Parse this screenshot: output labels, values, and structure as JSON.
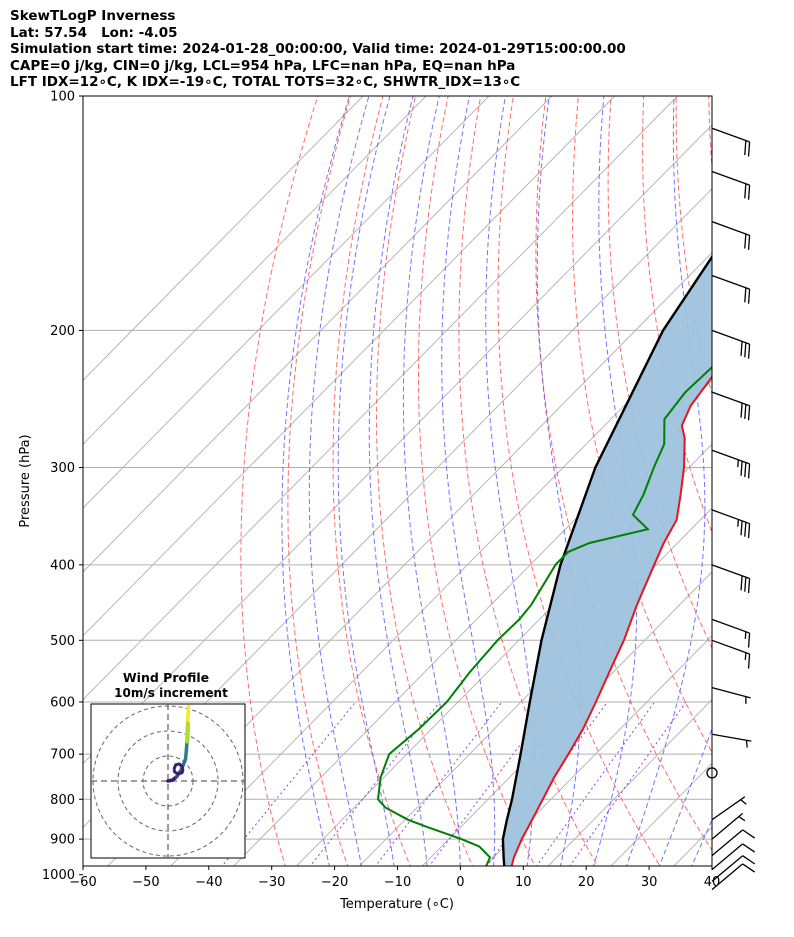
{
  "header": {
    "line1": "SkewTLogP Inverness",
    "line2": "Lat: 57.54   Lon: -4.05",
    "line3": "Simulation start time: 2024-01-28_00:00:00, Valid time: 2024-01-29T15:00:00.00",
    "line4": "CAPE=0 j/kg, CIN=0 j/kg, LCL=954 hPa, LFC=nan hPa, EQ=nan hPa",
    "line5": "LFT IDX=12∘C, K IDX=-19∘C, TOTAL TOTS=32∘C, SHWTR_IDX=13∘C"
  },
  "colors": {
    "temperature": "#e8141b",
    "dewpoint": "#008000",
    "parcel": "#000000",
    "cape_fill": "#9ec2de",
    "dry_adiabat": "#ff5a5a",
    "moist_adiabat": "#5a5aff",
    "mixing_ratio": "#8a2be2",
    "isotherm": "#b0b0b0"
  },
  "chart_data": [
    {
      "type": "line",
      "subtype": "skew-t log-p",
      "xlabel": "Temperature (∘C)",
      "ylabel": "Pressure (hPa)",
      "xlim": [
        -60,
        40
      ],
      "ylim": [
        1050,
        100
      ],
      "y_scale": "log",
      "x_ticks": [
        "−60",
        "−50",
        "−40",
        "−30",
        "−20",
        "−10",
        "0",
        "10",
        "20",
        "30",
        "40"
      ],
      "y_ticks": [
        "100",
        "200",
        "300",
        "400",
        "500",
        "600",
        "700",
        "800",
        "900",
        "1000"
      ],
      "grid": true,
      "series": [
        {
          "role": "temperature",
          "points": [
            [
              1010,
              6
            ],
            [
              1000,
              5.2
            ],
            [
              950,
              3.2
            ],
            [
              900,
              1.6
            ],
            [
              850,
              0.2
            ],
            [
              800,
              -1.3
            ],
            [
              750,
              -2.9
            ],
            [
              700,
              -4.3
            ],
            [
              650,
              -5.9
            ],
            [
              600,
              -8.1
            ],
            [
              550,
              -10.6
            ],
            [
              500,
              -13.3
            ],
            [
              450,
              -16.8
            ],
            [
              400,
              -20.3
            ],
            [
              375,
              -22.2
            ],
            [
              350,
              -23.8
            ],
            [
              325,
              -27.1
            ],
            [
              300,
              -30.8
            ],
            [
              275,
              -35.3
            ],
            [
              265,
              -37.7
            ],
            [
              250,
              -39.4
            ],
            [
              225,
              -40.8
            ],
            [
              210,
              -41.3
            ],
            [
              200,
              -42.2
            ],
            [
              175,
              -43.3
            ],
            [
              150,
              -45.0
            ],
            [
              125,
              -47.2
            ],
            [
              110,
              -48.4
            ],
            [
              100,
              -49.1
            ]
          ]
        },
        {
          "role": "dewpoint",
          "points": [
            [
              1010,
              0.8
            ],
            [
              990,
              0.6
            ],
            [
              950,
              -0.6
            ],
            [
              920,
              -4.0
            ],
            [
              900,
              -8.0
            ],
            [
              870,
              -15.0
            ],
            [
              850,
              -19.5
            ],
            [
              820,
              -25.0
            ],
            [
              800,
              -27.5
            ],
            [
              750,
              -30.5
            ],
            [
              700,
              -32.8
            ],
            [
              650,
              -32.0
            ],
            [
              600,
              -31.8
            ],
            [
              550,
              -32.8
            ],
            [
              500,
              -33.4
            ],
            [
              470,
              -33.2
            ],
            [
              450,
              -33.6
            ],
            [
              400,
              -36.0
            ],
            [
              385,
              -36.0
            ],
            [
              375,
              -34.0
            ],
            [
              360,
              -26.9
            ],
            [
              345,
              -31.5
            ],
            [
              325,
              -33.0
            ],
            [
              300,
              -35.6
            ],
            [
              280,
              -37.6
            ],
            [
              260,
              -41.5
            ],
            [
              240,
              -42.4
            ],
            [
              220,
              -42.0
            ],
            [
              200,
              -43.4
            ],
            [
              185,
              -46.6
            ],
            [
              170,
              -50.7
            ],
            [
              150,
              -51.9
            ],
            [
              130,
              -52.4
            ],
            [
              110,
              -52.9
            ],
            [
              100,
              -52.8
            ]
          ]
        },
        {
          "role": "parcel",
          "points": [
            [
              1010,
              5.2
            ],
            [
              1000,
              4.5
            ],
            [
              954,
              1.8
            ],
            [
              900,
              -1.4
            ],
            [
              850,
              -3.8
            ],
            [
              800,
              -6.2
            ],
            [
              700,
              -11.9
            ],
            [
              600,
              -18.6
            ],
            [
              500,
              -26.4
            ],
            [
              400,
              -35.2
            ],
            [
              300,
              -44.9
            ],
            [
              200,
              -55.6
            ],
            [
              100,
              -67.5
            ]
          ]
        }
      ],
      "hodograph": {
        "title": "Wind Profile",
        "subtitle": "10m/s increment",
        "points": [
          [
            0,
            0
          ],
          [
            1,
            0.2
          ],
          [
            2,
            1
          ],
          [
            3,
            2.5
          ],
          [
            4,
            5
          ],
          [
            4.2,
            7
          ],
          [
            4.4,
            9.8
          ],
          [
            4.5,
            12
          ],
          [
            4.6,
            13
          ],
          [
            4.5,
            10
          ],
          [
            4.3,
            9
          ],
          [
            4.5,
            14
          ],
          [
            4.7,
            17
          ]
        ],
        "loop": [
          [
            -4.5,
            1.5
          ],
          [
            -3.5,
            4
          ],
          [
            -1.5,
            4.5
          ],
          [
            0,
            3
          ],
          [
            0.5,
            1
          ],
          [
            0,
            -0.5
          ],
          [
            -2.5,
            -1
          ],
          [
            -4,
            0
          ],
          [
            -4.5,
            1.5
          ]
        ]
      },
      "wind_barbs": [
        {
          "p": 110,
          "speed_kt": 20,
          "dir_deg": 290
        },
        {
          "p": 125,
          "speed_kt": 20,
          "dir_deg": 290
        },
        {
          "p": 145,
          "speed_kt": 20,
          "dir_deg": 290
        },
        {
          "p": 170,
          "speed_kt": 20,
          "dir_deg": 290
        },
        {
          "p": 200,
          "speed_kt": 30,
          "dir_deg": 290
        },
        {
          "p": 240,
          "speed_kt": 30,
          "dir_deg": 290
        },
        {
          "p": 285,
          "speed_kt": 35,
          "dir_deg": 290
        },
        {
          "p": 340,
          "speed_kt": 35,
          "dir_deg": 290
        },
        {
          "p": 400,
          "speed_kt": 30,
          "dir_deg": 290
        },
        {
          "p": 470,
          "speed_kt": 15,
          "dir_deg": 290
        },
        {
          "p": 500,
          "speed_kt": 15,
          "dir_deg": 290
        },
        {
          "p": 575,
          "speed_kt": 5,
          "dir_deg": 285
        },
        {
          "p": 660,
          "speed_kt": 5,
          "dir_deg": 280
        },
        {
          "p": 740,
          "speed_kt": 0,
          "dir_deg": 0
        },
        {
          "p": 850,
          "speed_kt": 5,
          "dir_deg": 235
        },
        {
          "p": 900,
          "speed_kt": 5,
          "dir_deg": 230
        },
        {
          "p": 945,
          "speed_kt": 10,
          "dir_deg": 230
        },
        {
          "p": 985,
          "speed_kt": 10,
          "dir_deg": 230
        },
        {
          "p": 1020,
          "speed_kt": 10,
          "dir_deg": 230
        },
        {
          "p": 1045,
          "speed_kt": 10,
          "dir_deg": 230
        }
      ]
    }
  ]
}
